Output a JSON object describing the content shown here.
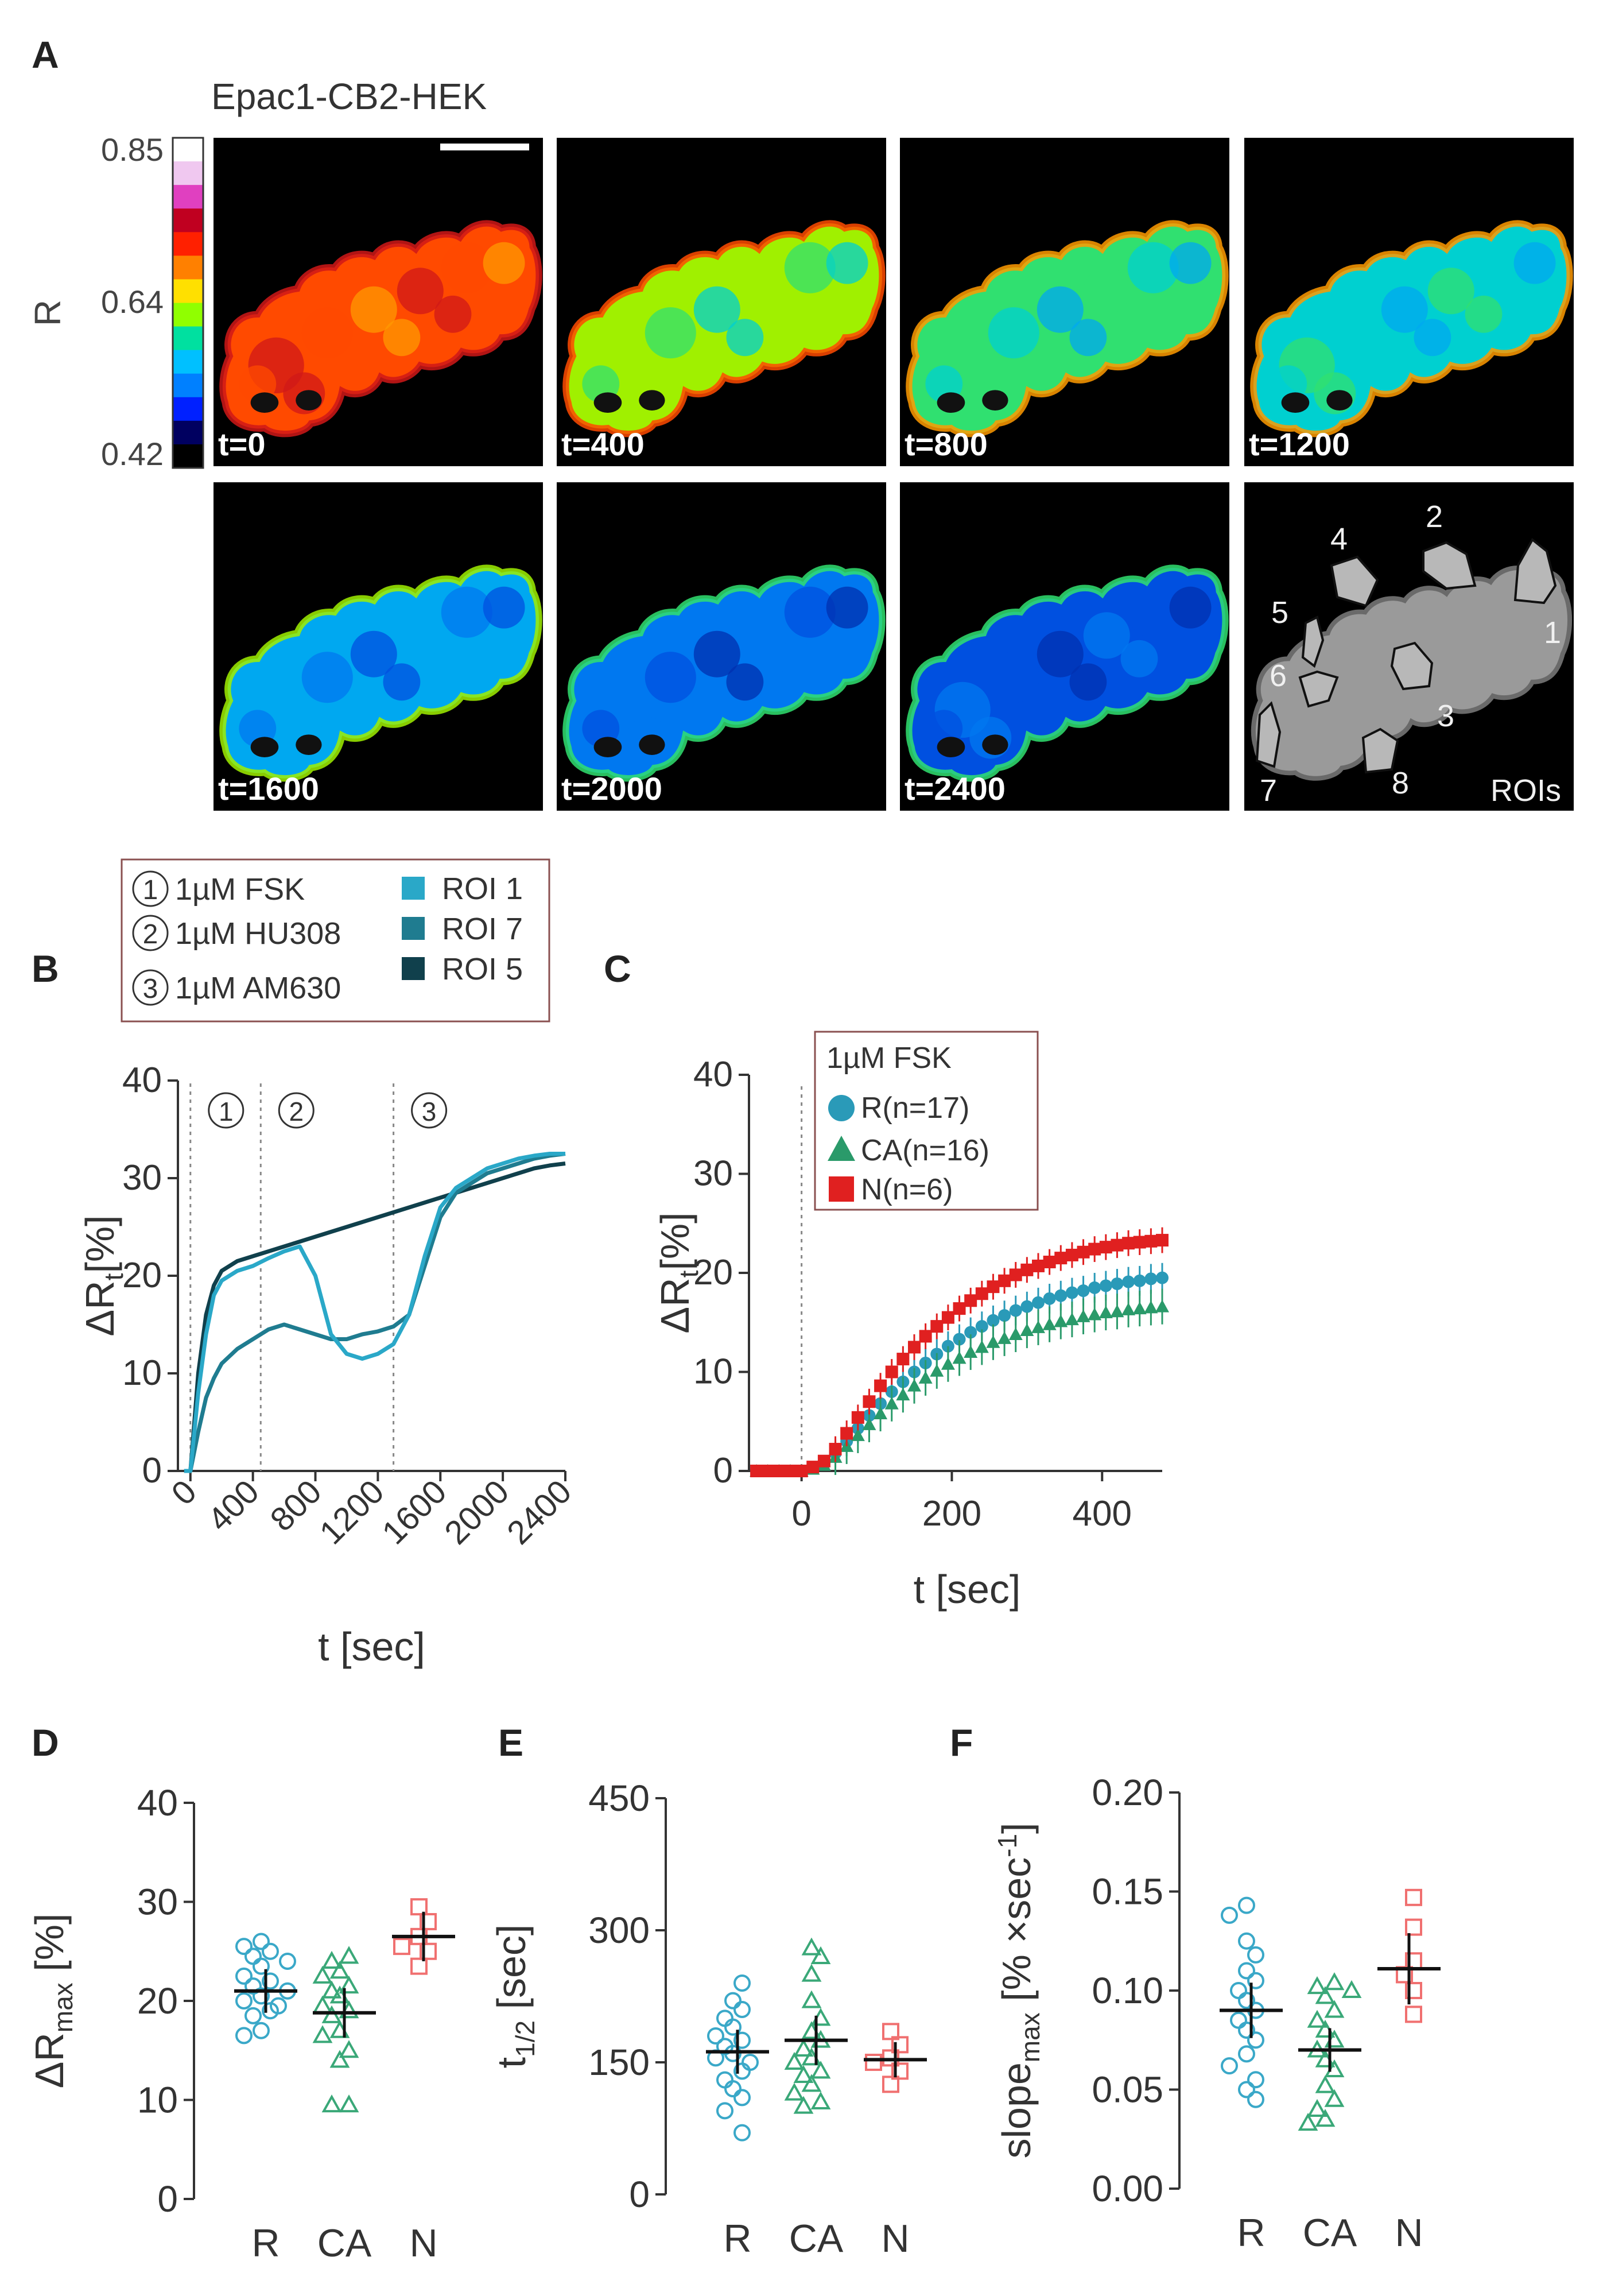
{
  "panels": {
    "A": {
      "letter": "A",
      "title": "Epac1-CB2-HEK",
      "colorbar": {
        "label": "R",
        "max": "0.85",
        "mid": "0.64",
        "min": "0.42",
        "colors": [
          "#ffffff",
          "#f0c8f0",
          "#e040c0",
          "#c00020",
          "#ff2000",
          "#ff8000",
          "#ffe000",
          "#90ff00",
          "#00e0a0",
          "#00c0ff",
          "#0080ff",
          "#0020ff",
          "#000060",
          "#000000"
        ]
      },
      "frames": [
        "t=0",
        "t=400",
        "t=800",
        "t=1200",
        "t=1600",
        "t=2000",
        "t=2400"
      ],
      "frame_levels": [
        0.05,
        0.42,
        0.5,
        0.55,
        0.72,
        0.82,
        0.88
      ],
      "roi_image": {
        "label": "ROIs",
        "roi_labels": [
          "1",
          "2",
          "3",
          "4",
          "5",
          "6",
          "7",
          "8"
        ]
      }
    },
    "B": {
      "letter": "B",
      "legend": {
        "treatments": [
          {
            "num": "1",
            "label": "1µM FSK"
          },
          {
            "num": "2",
            "label": "1µM HU308"
          },
          {
            "num": "3",
            "label": "1µM AM630"
          }
        ],
        "rois": [
          {
            "label": "ROI 1",
            "color": "#2aa8c8"
          },
          {
            "label": "ROI 7",
            "color": "#1f7c90"
          },
          {
            "label": "ROI 5",
            "color": "#10404c"
          }
        ]
      },
      "chart_data": {
        "type": "line",
        "xlabel": "t [sec]",
        "ylabel_main": "ΔR",
        "ylabel_sub": "t",
        "ylabel_unit": "[%]",
        "xlim": [
          -80,
          2400
        ],
        "ylim": [
          0,
          40
        ],
        "xticks": [
          0,
          400,
          800,
          1200,
          1600,
          2000,
          2400
        ],
        "yticks": [
          0,
          10,
          20,
          30,
          40
        ],
        "additions": [
          {
            "t": 0,
            "label": "1"
          },
          {
            "t": 450,
            "label": "2"
          },
          {
            "t": 1300,
            "label": "3"
          }
        ],
        "x": [
          -40,
          0,
          50,
          100,
          150,
          200,
          300,
          400,
          500,
          600,
          700,
          800,
          900,
          1000,
          1100,
          1200,
          1300,
          1400,
          1500,
          1600,
          1700,
          1800,
          1900,
          2000,
          2100,
          2200,
          2300,
          2400
        ],
        "series": [
          {
            "name": "ROI 1",
            "color": "#2aa8c8",
            "values": [
              0,
              0,
              8,
              14,
              18,
              19.5,
              20.5,
              21,
              21.8,
              22.5,
              23,
              20,
              14,
              12,
              11.5,
              12,
              13,
              16,
              22,
              27,
              29,
              30,
              31,
              31.5,
              32,
              32.3,
              32.5,
              32.5
            ]
          },
          {
            "name": "ROI 7",
            "color": "#1f7c90",
            "values": [
              0,
              0,
              4,
              7.5,
              9.5,
              11,
              12.5,
              13.5,
              14.5,
              15,
              14.5,
              14,
              13.5,
              13.5,
              14,
              14.3,
              14.8,
              16,
              21,
              26,
              28.5,
              29.5,
              30.5,
              31,
              31.5,
              32,
              32.3,
              32.5
            ]
          },
          {
            "name": "ROI 5",
            "color": "#10404c",
            "values": [
              0,
              0,
              10,
              16,
              19,
              20.5,
              21.5,
              22,
              22.5,
              23,
              23.5,
              24,
              24.5,
              25,
              25.5,
              26,
              26.5,
              27,
              27.5,
              28,
              28.5,
              29,
              29.5,
              30,
              30.5,
              31,
              31.3,
              31.5
            ]
          }
        ]
      }
    },
    "C": {
      "letter": "C",
      "legend_title": "1µM FSK",
      "chart_data": {
        "type": "scatter",
        "xlabel": "t [sec]",
        "ylabel_main": "ΔR",
        "ylabel_sub": "t",
        "ylabel_unit": "[%]",
        "xlim": [
          -70,
          480
        ],
        "ylim": [
          0,
          40
        ],
        "xticks": [
          0,
          200,
          400
        ],
        "yticks": [
          0,
          10,
          20,
          30,
          40
        ],
        "vline_at": 0,
        "x": [
          -60,
          -45,
          -30,
          -15,
          0,
          15,
          30,
          45,
          60,
          75,
          90,
          105,
          120,
          135,
          150,
          165,
          180,
          195,
          210,
          225,
          240,
          255,
          270,
          285,
          300,
          315,
          330,
          345,
          360,
          375,
          390,
          405,
          420,
          435,
          450,
          465,
          480
        ],
        "series": [
          {
            "name": "R(n=17)",
            "marker": "circle",
            "color": "#2a9ab8",
            "err": 1.5,
            "values": [
              0,
              0,
              0,
              0,
              0,
              0.3,
              0.8,
              1.8,
              3,
              4.3,
              5.6,
              6.8,
              8,
              9,
              10,
              10.9,
              11.8,
              12.6,
              13.3,
              14,
              14.6,
              15.2,
              15.7,
              16.2,
              16.6,
              17,
              17.4,
              17.7,
              18,
              18.2,
              18.5,
              18.7,
              18.9,
              19.1,
              19.2,
              19.4,
              19.5
            ]
          },
          {
            "name": "CA(n=16)",
            "marker": "triangle",
            "color": "#2a9a6a",
            "err": 1.8,
            "values": [
              0,
              0,
              0,
              0,
              0,
              0.2,
              0.6,
              1.4,
              2.5,
              3.6,
              4.7,
              5.8,
              6.8,
              7.7,
              8.6,
              9.4,
              10.1,
              10.8,
              11.4,
              12,
              12.5,
              13,
              13.4,
              13.8,
              14.2,
              14.5,
              14.8,
              15.1,
              15.3,
              15.6,
              15.8,
              16,
              16.1,
              16.3,
              16.4,
              16.5,
              16.6
            ]
          },
          {
            "name": "N(n=6)",
            "marker": "square",
            "color": "#e02020",
            "err": 1.3,
            "values": [
              0,
              0,
              0,
              0,
              0,
              0.4,
              1,
              2.2,
              3.8,
              5.4,
              7,
              8.6,
              10,
              11.3,
              12.5,
              13.6,
              14.6,
              15.5,
              16.4,
              17.2,
              17.9,
              18.6,
              19.2,
              19.8,
              20.3,
              20.7,
              21.1,
              21.5,
              21.8,
              22.1,
              22.4,
              22.6,
              22.8,
              23,
              23.1,
              23.2,
              23.3
            ]
          }
        ]
      }
    },
    "D": {
      "letter": "D",
      "chart_data": {
        "type": "scatter",
        "ylabel_main": "ΔR",
        "ylabel_sub": "max",
        "ylabel_unit": "[%]",
        "categories": [
          "R",
          "CA",
          "N"
        ],
        "ylim": [
          0,
          40
        ],
        "yticks": [
          "0",
          "10",
          "20",
          "30",
          "40"
        ],
        "groups": [
          {
            "name": "R",
            "marker": "circle",
            "color": "#3aa8c8",
            "mean": 21,
            "err": 2.2,
            "values": [
              26,
              25.5,
              25,
              24.5,
              24,
              23.5,
              22.5,
              22,
              21.5,
              21,
              20.5,
              20,
              19.5,
              19,
              18.5,
              17,
              16.5
            ]
          },
          {
            "name": "CA",
            "marker": "triangle",
            "color": "#3aa878",
            "mean": 18.8,
            "err": 2.5,
            "values": [
              24.5,
              24,
              23,
              22.5,
              21.5,
              21,
              20.5,
              19.5,
              19,
              18.5,
              17,
              16.5,
              15,
              14,
              9.5,
              9.5
            ]
          },
          {
            "name": "N",
            "marker": "square",
            "color": "#f07070",
            "mean": 26.5,
            "err": 2.5,
            "values": [
              29.5,
              28,
              26.5,
              25.5,
              25,
              23.5
            ]
          }
        ]
      }
    },
    "E": {
      "letter": "E",
      "chart_data": {
        "type": "scatter",
        "ylabel_main": "t",
        "ylabel_sub": "1/2",
        "ylabel_unit": "[sec]",
        "categories": [
          "R",
          "CA",
          "N"
        ],
        "ylim": [
          0,
          450
        ],
        "yticks": [
          "0",
          "150",
          "300",
          "450"
        ],
        "groups": [
          {
            "name": "R",
            "marker": "circle",
            "color": "#3aa8c8",
            "mean": 162,
            "err": 25,
            "values": [
              240,
              220,
              210,
              200,
              190,
              180,
              175,
              168,
              160,
              155,
              150,
              140,
              130,
              120,
              110,
              95,
              70
            ]
          },
          {
            "name": "CA",
            "marker": "triangle",
            "color": "#3aa878",
            "mean": 175,
            "err": 28,
            "values": [
              280,
              270,
              250,
              220,
              200,
              185,
              175,
              165,
              155,
              150,
              140,
              135,
              125,
              115,
              105,
              100
            ]
          },
          {
            "name": "N",
            "marker": "square",
            "color": "#f07070",
            "mean": 153,
            "err": 20,
            "values": [
              185,
              170,
              155,
              150,
              140,
              125
            ]
          }
        ]
      }
    },
    "F": {
      "letter": "F",
      "chart_data": {
        "type": "scatter",
        "ylabel_main": "slope",
        "ylabel_sub": "max",
        "ylabel_unit": "[% ×sec",
        "ylabel_sup": "-1",
        "ylabel_end": "]",
        "categories": [
          "R",
          "CA",
          "N"
        ],
        "ylim": [
          0,
          0.2
        ],
        "yticks": [
          "0.00",
          "0.05",
          "0.10",
          "0.15",
          "0.20"
        ],
        "groups": [
          {
            "name": "R",
            "marker": "circle",
            "color": "#3aa8c8",
            "mean": 0.09,
            "err": 0.014,
            "values": [
              0.143,
              0.138,
              0.125,
              0.118,
              0.11,
              0.105,
              0.1,
              0.095,
              0.09,
              0.085,
              0.08,
              0.075,
              0.068,
              0.062,
              0.055,
              0.05,
              0.045
            ]
          },
          {
            "name": "CA",
            "marker": "triangle",
            "color": "#3aa878",
            "mean": 0.07,
            "err": 0.011,
            "values": [
              0.104,
              0.102,
              0.1,
              0.097,
              0.09,
              0.085,
              0.08,
              0.075,
              0.07,
              0.065,
              0.06,
              0.052,
              0.045,
              0.04,
              0.035,
              0.033
            ]
          },
          {
            "name": "N",
            "marker": "square",
            "color": "#f07070",
            "mean": 0.111,
            "err": 0.018,
            "values": [
              0.147,
              0.132,
              0.115,
              0.108,
              0.1,
              0.088
            ]
          }
        ]
      }
    }
  }
}
